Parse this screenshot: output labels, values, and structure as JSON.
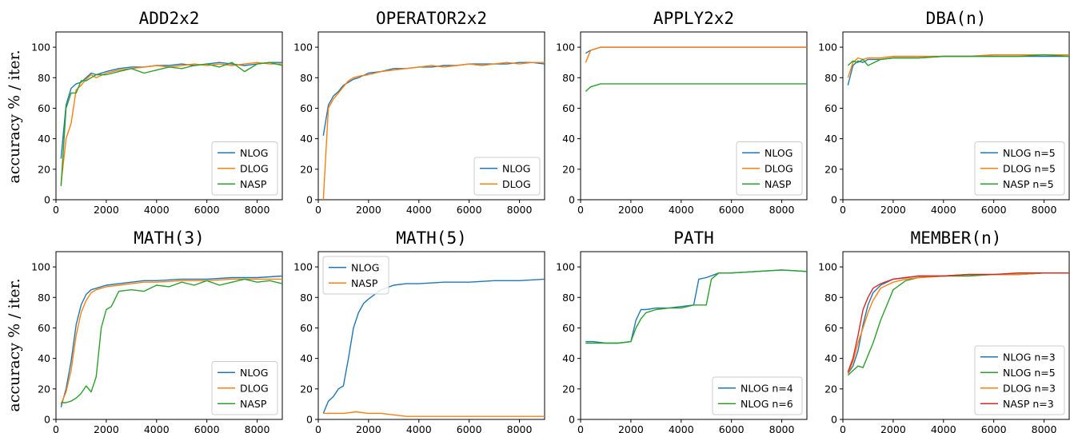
{
  "figure": {
    "ylabel": "accuracy % / iter."
  },
  "chart_data": [
    {
      "type": "line",
      "title": "ADD2x2",
      "xlim": [
        0,
        9000
      ],
      "ylim": [
        0,
        110
      ],
      "xticks": [
        0,
        2000,
        4000,
        6000,
        8000
      ],
      "yticks": [
        0,
        20,
        40,
        60,
        80,
        100
      ],
      "legend": "bottom-right",
      "series": [
        {
          "name": "NLOG",
          "color": "#1f77b4",
          "x": [
            200,
            400,
            600,
            800,
            1000,
            1200,
            1400,
            1600,
            2000,
            2500,
            3000,
            3500,
            4000,
            4500,
            5000,
            5500,
            6000,
            6500,
            7000,
            7500,
            8000,
            8500,
            9000
          ],
          "y": [
            27,
            62,
            73,
            76,
            77,
            80,
            83,
            82,
            84,
            86,
            87,
            87,
            88,
            88,
            89,
            88,
            89,
            90,
            89,
            88,
            89,
            90,
            90
          ]
        },
        {
          "name": "DLOG",
          "color": "#ff7f0e",
          "x": [
            200,
            400,
            600,
            800,
            1000,
            1200,
            1400,
            1600,
            2000,
            2500,
            3000,
            3500,
            4000,
            4500,
            5000,
            5500,
            6000,
            6500,
            7000,
            7500,
            8000,
            8500,
            9000
          ],
          "y": [
            10,
            40,
            50,
            72,
            75,
            79,
            82,
            80,
            83,
            85,
            86,
            87,
            88,
            87,
            88,
            89,
            88,
            89,
            88,
            89,
            90,
            89,
            89
          ]
        },
        {
          "name": "NASP",
          "color": "#2ca02c",
          "x": [
            200,
            400,
            600,
            800,
            1000,
            1200,
            1400,
            1600,
            2000,
            2500,
            3000,
            3500,
            4000,
            4500,
            5000,
            5500,
            6000,
            6500,
            7000,
            7500,
            8000,
            8500,
            9000
          ],
          "y": [
            9,
            60,
            70,
            70,
            78,
            78,
            80,
            82,
            82,
            84,
            86,
            83,
            85,
            87,
            86,
            88,
            89,
            87,
            90,
            84,
            89,
            90,
            88
          ]
        }
      ]
    },
    {
      "type": "line",
      "title": "OPERATOR2x2",
      "xlim": [
        0,
        9000
      ],
      "ylim": [
        0,
        110
      ],
      "xticks": [
        0,
        2000,
        4000,
        6000,
        8000
      ],
      "yticks": [
        0,
        20,
        40,
        60,
        80,
        100
      ],
      "legend": "bottom-right",
      "series": [
        {
          "name": "NLOG",
          "color": "#1f77b4",
          "x": [
            200,
            400,
            600,
            800,
            1000,
            1200,
            1400,
            1600,
            2000,
            2500,
            3000,
            3500,
            4000,
            4500,
            5000,
            5500,
            6000,
            6500,
            7000,
            7500,
            8000,
            8500,
            9000
          ],
          "y": [
            42,
            62,
            68,
            71,
            75,
            77,
            79,
            80,
            83,
            84,
            86,
            86,
            87,
            87,
            88,
            88,
            89,
            89,
            89,
            89,
            90,
            90,
            89
          ]
        },
        {
          "name": "DLOG",
          "color": "#ff7f0e",
          "x": [
            200,
            400,
            600,
            800,
            1000,
            1200,
            1400,
            1600,
            2000,
            2500,
            3000,
            3500,
            4000,
            4500,
            5000,
            5500,
            6000,
            6500,
            7000,
            7500,
            8000,
            8500,
            9000
          ],
          "y": [
            0,
            60,
            66,
            70,
            74,
            78,
            80,
            81,
            82,
            84,
            85,
            86,
            87,
            88,
            87,
            88,
            89,
            88,
            89,
            90,
            89,
            90,
            90
          ]
        }
      ]
    },
    {
      "type": "line",
      "title": "APPLY2x2",
      "xlim": [
        0,
        9000
      ],
      "ylim": [
        0,
        110
      ],
      "xticks": [
        0,
        2000,
        4000,
        6000,
        8000
      ],
      "yticks": [
        0,
        20,
        40,
        60,
        80,
        100
      ],
      "legend": "bottom-right",
      "series": [
        {
          "name": "NLOG",
          "color": "#1f77b4",
          "x": [
            200,
            400,
            600,
            800,
            1000,
            2000,
            4000,
            6000,
            8000,
            9000
          ],
          "y": [
            96,
            98,
            99,
            100,
            100,
            100,
            100,
            100,
            100,
            100
          ]
        },
        {
          "name": "DLOG",
          "color": "#ff7f0e",
          "x": [
            200,
            400,
            600,
            800,
            1000,
            2000,
            4000,
            6000,
            8000,
            9000
          ],
          "y": [
            90,
            98,
            99,
            100,
            100,
            100,
            100,
            100,
            100,
            100
          ]
        },
        {
          "name": "NASP",
          "color": "#2ca02c",
          "x": [
            200,
            400,
            600,
            800,
            1000,
            2000,
            4000,
            6000,
            8000,
            9000
          ],
          "y": [
            71,
            74,
            75,
            76,
            76,
            76,
            76,
            76,
            76,
            76
          ]
        }
      ]
    },
    {
      "type": "line",
      "title": "DBA(n)",
      "xlim": [
        0,
        9000
      ],
      "ylim": [
        0,
        110
      ],
      "xticks": [
        0,
        2000,
        4000,
        6000,
        8000
      ],
      "yticks": [
        0,
        20,
        40,
        60,
        80,
        100
      ],
      "legend": "bottom-right",
      "series": [
        {
          "name": "NLOG n=5",
          "color": "#1f77b4",
          "x": [
            200,
            400,
            600,
            800,
            1000,
            1500,
            2000,
            3000,
            4000,
            5000,
            6000,
            7000,
            8000,
            9000
          ],
          "y": [
            75,
            88,
            91,
            90,
            92,
            92,
            93,
            93,
            94,
            94,
            94,
            94,
            94,
            94
          ]
        },
        {
          "name": "DLOG n=5",
          "color": "#ff7f0e",
          "x": [
            200,
            400,
            600,
            800,
            1000,
            1500,
            2000,
            3000,
            4000,
            5000,
            6000,
            7000,
            8000,
            9000
          ],
          "y": [
            80,
            90,
            93,
            92,
            93,
            93,
            94,
            94,
            94,
            94,
            95,
            95,
            95,
            95
          ]
        },
        {
          "name": "NASP n=5",
          "color": "#2ca02c",
          "x": [
            200,
            400,
            600,
            800,
            1000,
            1500,
            2000,
            3000,
            4000,
            5000,
            6000,
            7000,
            8000,
            9000
          ],
          "y": [
            88,
            91,
            90,
            92,
            88,
            92,
            93,
            93,
            94,
            94,
            94,
            94,
            95,
            94
          ]
        }
      ]
    },
    {
      "type": "line",
      "title": "MATH(3)",
      "xlim": [
        0,
        9000
      ],
      "ylim": [
        0,
        110
      ],
      "xticks": [
        0,
        2000,
        4000,
        6000,
        8000
      ],
      "yticks": [
        0,
        20,
        40,
        60,
        80,
        100
      ],
      "legend": "bottom-right",
      "series": [
        {
          "name": "NLOG",
          "color": "#1f77b4",
          "x": [
            200,
            400,
            600,
            800,
            1000,
            1200,
            1400,
            1600,
            1800,
            2000,
            2500,
            3000,
            3500,
            4000,
            5000,
            6000,
            7000,
            8000,
            9000
          ],
          "y": [
            8,
            20,
            38,
            62,
            75,
            82,
            85,
            86,
            87,
            88,
            89,
            90,
            91,
            91,
            92,
            92,
            93,
            93,
            94
          ]
        },
        {
          "name": "DLOG",
          "color": "#ff7f0e",
          "x": [
            200,
            400,
            600,
            800,
            1000,
            1200,
            1400,
            1600,
            1800,
            2000,
            2500,
            3000,
            3500,
            4000,
            5000,
            6000,
            7000,
            8000,
            9000
          ],
          "y": [
            10,
            18,
            32,
            55,
            70,
            78,
            83,
            85,
            86,
            87,
            88,
            89,
            90,
            90,
            91,
            91,
            92,
            92,
            92
          ]
        },
        {
          "name": "NASP",
          "color": "#2ca02c",
          "x": [
            200,
            400,
            600,
            800,
            1000,
            1200,
            1400,
            1600,
            1800,
            2000,
            2200,
            2500,
            3000,
            3500,
            4000,
            4500,
            5000,
            5500,
            6000,
            6500,
            7000,
            7500,
            8000,
            8500,
            9000
          ],
          "y": [
            11,
            11,
            12,
            14,
            17,
            22,
            18,
            28,
            60,
            72,
            74,
            84,
            85,
            84,
            88,
            87,
            90,
            88,
            91,
            88,
            90,
            92,
            90,
            91,
            89
          ]
        }
      ]
    },
    {
      "type": "line",
      "title": "MATH(5)",
      "xlim": [
        0,
        9000
      ],
      "ylim": [
        0,
        110
      ],
      "xticks": [
        0,
        2000,
        4000,
        6000,
        8000
      ],
      "yticks": [
        0,
        20,
        40,
        60,
        80,
        100
      ],
      "legend": "top-left",
      "series": [
        {
          "name": "NLOG",
          "color": "#1f77b4",
          "x": [
            200,
            400,
            600,
            800,
            1000,
            1200,
            1400,
            1600,
            1800,
            2000,
            2500,
            3000,
            3500,
            4000,
            5000,
            6000,
            7000,
            8000,
            9000
          ],
          "y": [
            4,
            12,
            15,
            20,
            22,
            40,
            60,
            70,
            76,
            79,
            85,
            88,
            89,
            89,
            90,
            90,
            91,
            91,
            92
          ]
        },
        {
          "name": "NASP",
          "color": "#ff7f0e",
          "x": [
            200,
            600,
            1000,
            1500,
            2000,
            2500,
            3000,
            3500,
            4000,
            5000,
            6000,
            7000,
            8000,
            9000
          ],
          "y": [
            4,
            4,
            4,
            5,
            4,
            4,
            3,
            2,
            2,
            2,
            2,
            2,
            2,
            2
          ]
        }
      ]
    },
    {
      "type": "line",
      "title": "PATH",
      "xlim": [
        0,
        9000
      ],
      "ylim": [
        0,
        110
      ],
      "xticks": [
        0,
        2000,
        4000,
        6000,
        8000
      ],
      "yticks": [
        0,
        20,
        40,
        60,
        80,
        100
      ],
      "legend": "bottom-right",
      "series": [
        {
          "name": "NLOG n=4",
          "color": "#1f77b4",
          "x": [
            200,
            500,
            1000,
            1500,
            2000,
            2200,
            2400,
            2600,
            3000,
            3500,
            4000,
            4500,
            4700,
            5000,
            5500,
            6000,
            7000,
            8000,
            9000
          ],
          "y": [
            51,
            51,
            50,
            50,
            51,
            65,
            72,
            72,
            73,
            73,
            74,
            75,
            92,
            93,
            96,
            96,
            97,
            98,
            97
          ]
        },
        {
          "name": "NLOG n=6",
          "color": "#2ca02c",
          "x": [
            200,
            500,
            1000,
            1500,
            2000,
            2200,
            2400,
            2600,
            3000,
            3500,
            4000,
            4500,
            5000,
            5200,
            5500,
            6000,
            7000,
            8000,
            9000
          ],
          "y": [
            50,
            50,
            50,
            50,
            51,
            60,
            66,
            70,
            72,
            73,
            73,
            75,
            75,
            92,
            96,
            96,
            97,
            98,
            97
          ]
        }
      ]
    },
    {
      "type": "line",
      "title": "MEMBER(n)",
      "xlim": [
        0,
        9000
      ],
      "ylim": [
        0,
        110
      ],
      "xticks": [
        0,
        2000,
        4000,
        6000,
        8000
      ],
      "yticks": [
        0,
        20,
        40,
        60,
        80,
        100
      ],
      "legend": "bottom-right",
      "series": [
        {
          "name": "NLOG n=3",
          "color": "#1f77b4",
          "x": [
            200,
            400,
            600,
            800,
            1000,
            1200,
            1500,
            2000,
            2500,
            3000,
            4000,
            5000,
            6000,
            7000,
            8000,
            9000
          ],
          "y": [
            30,
            35,
            45,
            62,
            75,
            83,
            88,
            92,
            93,
            94,
            94,
            95,
            95,
            95,
            96,
            96
          ]
        },
        {
          "name": "NLOG n=5",
          "color": "#2ca02c",
          "x": [
            200,
            400,
            600,
            800,
            1000,
            1200,
            1500,
            2000,
            2500,
            3000,
            4000,
            5000,
            6000,
            7000,
            8000,
            9000
          ],
          "y": [
            29,
            32,
            35,
            34,
            42,
            50,
            65,
            85,
            91,
            93,
            94,
            94,
            95,
            95,
            96,
            96
          ]
        },
        {
          "name": "DLOG n=3",
          "color": "#ff7f0e",
          "x": [
            200,
            400,
            600,
            800,
            1000,
            1200,
            1500,
            2000,
            2500,
            3000,
            4000,
            5000,
            6000,
            7000,
            8000,
            9000
          ],
          "y": [
            30,
            38,
            50,
            60,
            70,
            78,
            86,
            90,
            92,
            93,
            94,
            95,
            95,
            95,
            96,
            96
          ]
        },
        {
          "name": "NASP n=3",
          "color": "#d62728",
          "x": [
            200,
            400,
            600,
            800,
            1000,
            1200,
            1500,
            2000,
            2500,
            3000,
            4000,
            5000,
            6000,
            7000,
            8000,
            9000
          ],
          "y": [
            31,
            40,
            55,
            72,
            80,
            86,
            89,
            92,
            93,
            94,
            94,
            95,
            95,
            96,
            96,
            96
          ]
        }
      ]
    }
  ]
}
